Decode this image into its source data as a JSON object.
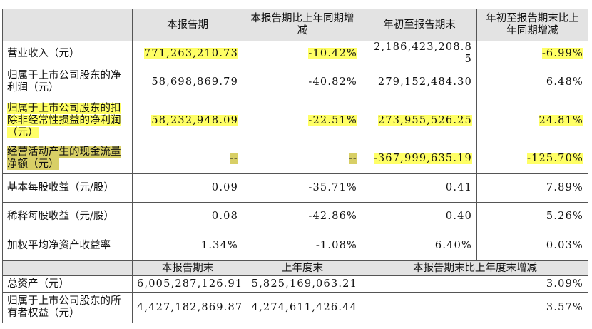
{
  "table": {
    "header": [
      "",
      "本报告期",
      "本报告期比上年同期增减",
      "年初至报告期末",
      "年初至报告期末比上年同期增减"
    ],
    "rows": [
      [
        "营业收入（元）",
        "771,263,210.73",
        "-10.42%",
        "2,186,423,208.85",
        "-6.99%"
      ],
      [
        "归属于上市公司股东的净利润（元）",
        "58,698,869.79",
        "-40.82%",
        "279,152,484.30",
        "6.48%"
      ],
      [
        "归属于上市公司股东的扣除非经常性损益的净利润（元）",
        "58,232,948.09",
        "-22.51%",
        "273,955,526.25",
        "24.81%"
      ],
      [
        "经营活动产生的现金流量净额（元）",
        "--",
        "--",
        "-367,999,635.19",
        "-125.70%"
      ],
      [
        "基本每股收益（元/股）",
        "0.09",
        "-35.71%",
        "0.41",
        "7.89%"
      ],
      [
        "稀释每股收益（元/股）",
        "0.08",
        "-42.86%",
        "0.40",
        "5.26%"
      ],
      [
        "加权平均净资产收益率",
        "1.34%",
        "-1.08%",
        "6.40%",
        "0.03%"
      ]
    ],
    "header2": [
      "",
      "本报告期末",
      "上年度末",
      "本报告期末比上年度末增减"
    ],
    "rows2": [
      [
        "总资产（元）",
        "6,005,287,126.91",
        "5,825,169,063.21",
        "3.09%"
      ],
      [
        "归属于上市公司股东的所有者权益（元）",
        "4,427,182,869.87",
        "4,274,611,426.44",
        "3.57%"
      ]
    ]
  }
}
